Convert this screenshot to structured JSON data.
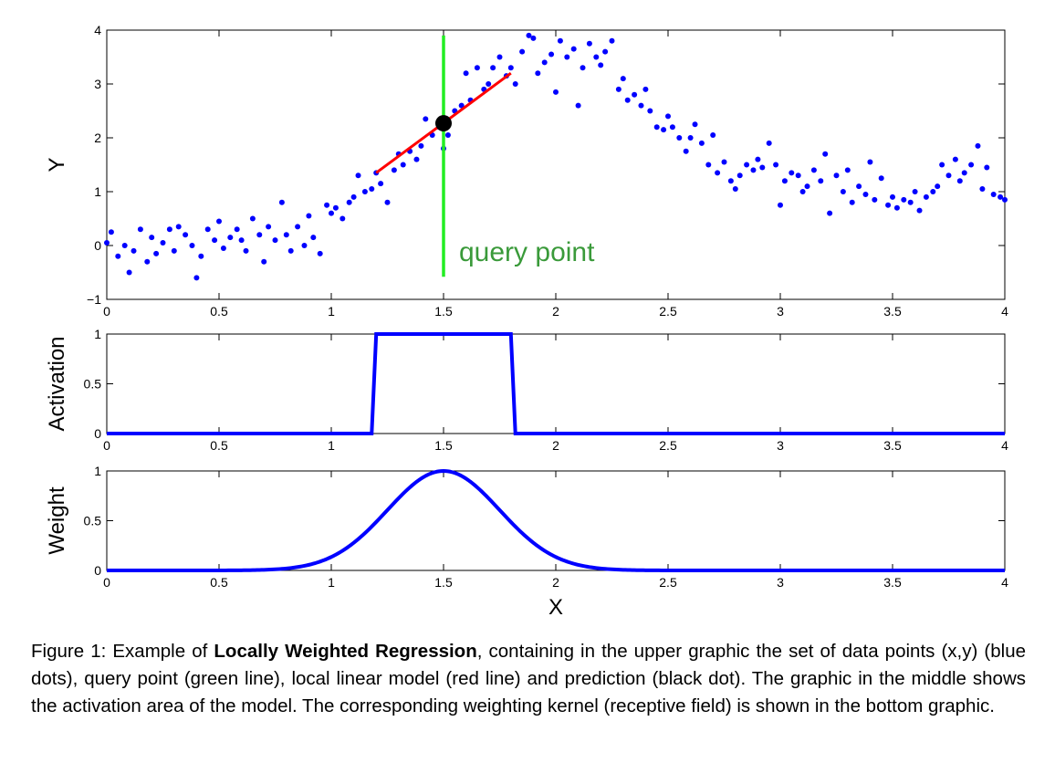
{
  "chart_data": [
    {
      "type": "scatter",
      "title": "",
      "xlabel": "",
      "ylabel": "Y",
      "xlim": [
        0,
        4
      ],
      "ylim": [
        -1,
        4
      ],
      "xticks": [
        "0",
        "0.5",
        "1",
        "1.5",
        "2",
        "2.5",
        "3",
        "3.5",
        "4"
      ],
      "yticks": [
        "−1",
        "0",
        "1",
        "2",
        "3",
        "4"
      ],
      "grid": false,
      "annotations": [
        "query point"
      ],
      "series": [
        {
          "kind": "points",
          "color": "#0000ff",
          "points": [
            [
              0.0,
              0.05
            ],
            [
              0.02,
              0.25
            ],
            [
              0.05,
              -0.2
            ],
            [
              0.08,
              0.0
            ],
            [
              0.1,
              -0.5
            ],
            [
              0.12,
              -0.1
            ],
            [
              0.15,
              0.3
            ],
            [
              0.18,
              -0.3
            ],
            [
              0.2,
              0.15
            ],
            [
              0.22,
              -0.15
            ],
            [
              0.25,
              0.05
            ],
            [
              0.28,
              0.3
            ],
            [
              0.3,
              -0.1
            ],
            [
              0.32,
              0.35
            ],
            [
              0.35,
              0.2
            ],
            [
              0.38,
              0.0
            ],
            [
              0.4,
              -0.6
            ],
            [
              0.42,
              -0.2
            ],
            [
              0.45,
              0.3
            ],
            [
              0.48,
              0.1
            ],
            [
              0.5,
              0.45
            ],
            [
              0.52,
              -0.05
            ],
            [
              0.55,
              0.15
            ],
            [
              0.58,
              0.3
            ],
            [
              0.6,
              0.1
            ],
            [
              0.62,
              -0.1
            ],
            [
              0.65,
              0.5
            ],
            [
              0.68,
              0.2
            ],
            [
              0.7,
              -0.3
            ],
            [
              0.72,
              0.35
            ],
            [
              0.75,
              0.1
            ],
            [
              0.78,
              0.8
            ],
            [
              0.8,
              0.2
            ],
            [
              0.82,
              -0.1
            ],
            [
              0.85,
              0.35
            ],
            [
              0.88,
              0.0
            ],
            [
              0.9,
              0.55
            ],
            [
              0.92,
              0.15
            ],
            [
              0.95,
              -0.15
            ],
            [
              0.98,
              0.75
            ],
            [
              1.0,
              0.6
            ],
            [
              1.02,
              0.7
            ],
            [
              1.05,
              0.5
            ],
            [
              1.08,
              0.8
            ],
            [
              1.1,
              0.9
            ],
            [
              1.12,
              1.3
            ],
            [
              1.15,
              1.0
            ],
            [
              1.18,
              1.05
            ],
            [
              1.2,
              1.35
            ],
            [
              1.22,
              1.15
            ],
            [
              1.25,
              0.8
            ],
            [
              1.28,
              1.4
            ],
            [
              1.3,
              1.7
            ],
            [
              1.32,
              1.5
            ],
            [
              1.35,
              1.75
            ],
            [
              1.38,
              1.6
            ],
            [
              1.4,
              1.85
            ],
            [
              1.42,
              2.35
            ],
            [
              1.45,
              2.05
            ],
            [
              1.48,
              2.2
            ],
            [
              1.5,
              1.8
            ],
            [
              1.52,
              2.05
            ],
            [
              1.55,
              2.5
            ],
            [
              1.58,
              2.6
            ],
            [
              1.6,
              3.2
            ],
            [
              1.62,
              2.7
            ],
            [
              1.65,
              3.3
            ],
            [
              1.68,
              2.9
            ],
            [
              1.7,
              3.0
            ],
            [
              1.72,
              3.3
            ],
            [
              1.75,
              3.5
            ],
            [
              1.78,
              3.15
            ],
            [
              1.8,
              3.3
            ],
            [
              1.82,
              3.0
            ],
            [
              1.85,
              3.6
            ],
            [
              1.88,
              3.9
            ],
            [
              1.9,
              3.85
            ],
            [
              1.92,
              3.2
            ],
            [
              1.95,
              3.4
            ],
            [
              1.98,
              3.55
            ],
            [
              2.0,
              2.85
            ],
            [
              2.02,
              3.8
            ],
            [
              2.05,
              3.5
            ],
            [
              2.08,
              3.65
            ],
            [
              2.1,
              2.6
            ],
            [
              2.12,
              3.3
            ],
            [
              2.15,
              3.75
            ],
            [
              2.18,
              3.5
            ],
            [
              2.2,
              3.35
            ],
            [
              2.22,
              3.6
            ],
            [
              2.25,
              3.8
            ],
            [
              2.28,
              2.9
            ],
            [
              2.3,
              3.1
            ],
            [
              2.32,
              2.7
            ],
            [
              2.35,
              2.8
            ],
            [
              2.38,
              2.6
            ],
            [
              2.4,
              2.9
            ],
            [
              2.42,
              2.5
            ],
            [
              2.45,
              2.2
            ],
            [
              2.48,
              2.15
            ],
            [
              2.5,
              2.4
            ],
            [
              2.52,
              2.2
            ],
            [
              2.55,
              2.0
            ],
            [
              2.58,
              1.75
            ],
            [
              2.6,
              2.0
            ],
            [
              2.62,
              2.25
            ],
            [
              2.65,
              1.9
            ],
            [
              2.68,
              1.5
            ],
            [
              2.7,
              2.05
            ],
            [
              2.72,
              1.35
            ],
            [
              2.75,
              1.55
            ],
            [
              2.78,
              1.2
            ],
            [
              2.8,
              1.05
            ],
            [
              2.82,
              1.3
            ],
            [
              2.85,
              1.5
            ],
            [
              2.88,
              1.4
            ],
            [
              2.9,
              1.6
            ],
            [
              2.92,
              1.45
            ],
            [
              2.95,
              1.9
            ],
            [
              2.98,
              1.5
            ],
            [
              3.0,
              0.75
            ],
            [
              3.02,
              1.2
            ],
            [
              3.05,
              1.35
            ],
            [
              3.08,
              1.3
            ],
            [
              3.1,
              1.0
            ],
            [
              3.12,
              1.1
            ],
            [
              3.15,
              1.4
            ],
            [
              3.18,
              1.2
            ],
            [
              3.2,
              1.7
            ],
            [
              3.22,
              0.6
            ],
            [
              3.25,
              1.3
            ],
            [
              3.28,
              1.0
            ],
            [
              3.3,
              1.4
            ],
            [
              3.32,
              0.8
            ],
            [
              3.35,
              1.1
            ],
            [
              3.38,
              0.95
            ],
            [
              3.4,
              1.55
            ],
            [
              3.42,
              0.85
            ],
            [
              3.45,
              1.25
            ],
            [
              3.48,
              0.75
            ],
            [
              3.5,
              0.9
            ],
            [
              3.52,
              0.7
            ],
            [
              3.55,
              0.85
            ],
            [
              3.58,
              0.8
            ],
            [
              3.6,
              1.0
            ],
            [
              3.62,
              0.65
            ],
            [
              3.65,
              0.9
            ],
            [
              3.68,
              1.0
            ],
            [
              3.7,
              1.1
            ],
            [
              3.72,
              1.5
            ],
            [
              3.75,
              1.3
            ],
            [
              3.78,
              1.6
            ],
            [
              3.8,
              1.2
            ],
            [
              3.82,
              1.35
            ],
            [
              3.85,
              1.5
            ],
            [
              3.88,
              1.85
            ],
            [
              3.9,
              1.05
            ],
            [
              3.92,
              1.45
            ],
            [
              3.95,
              0.95
            ],
            [
              3.98,
              0.9
            ],
            [
              4.0,
              0.85
            ]
          ]
        },
        {
          "kind": "vline",
          "color": "#22ee22",
          "x": 1.5,
          "y": [
            -0.58,
            3.9
          ]
        },
        {
          "kind": "line",
          "color": "#ff0000",
          "x": [
            1.2,
            1.8
          ],
          "y": [
            1.35,
            3.2
          ]
        },
        {
          "kind": "point",
          "color": "#000000",
          "x": 1.5,
          "y": 2.27
        }
      ]
    },
    {
      "type": "line",
      "title": "",
      "xlabel": "",
      "ylabel": "Activation",
      "xlim": [
        0,
        4
      ],
      "ylim": [
        0,
        1
      ],
      "xticks": [
        "0",
        "0.5",
        "1",
        "1.5",
        "2",
        "2.5",
        "3",
        "3.5",
        "4"
      ],
      "yticks": [
        "0",
        "0.5",
        "1"
      ],
      "grid": false,
      "series": [
        {
          "color": "#0000ff",
          "x": [
            0,
            1.18,
            1.2,
            1.8,
            1.82,
            4
          ],
          "y": [
            0,
            0,
            1,
            1,
            0,
            0
          ]
        }
      ]
    },
    {
      "type": "line",
      "title": "",
      "xlabel": "X",
      "ylabel": "Weight",
      "xlim": [
        0,
        4
      ],
      "ylim": [
        0,
        1
      ],
      "xticks": [
        "0",
        "0.5",
        "1",
        "1.5",
        "2",
        "2.5",
        "3",
        "3.5",
        "4"
      ],
      "yticks": [
        "0",
        "0.5",
        "1"
      ],
      "grid": false,
      "series": [
        {
          "color": "#0000ff",
          "kind": "gaussian",
          "center": 1.5,
          "sigma": 0.25,
          "xrange": [
            0,
            4
          ]
        }
      ]
    }
  ],
  "caption": {
    "prefix": "Figure 1: Example of ",
    "bold": "Locally Weighted Regression",
    "suffix": ", containing in the upper graphic the set of data points (x,y) (blue dots), query point (green line), local linear model (red line) and prediction (black dot). The graphic in the middle shows the activation area of the model. The corresponding weighting kernel (receptive field) is shown in the bottom graphic."
  }
}
